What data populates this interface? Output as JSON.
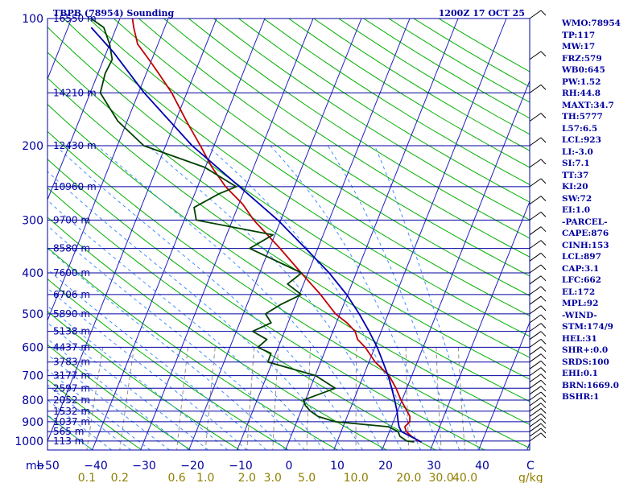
{
  "header": {
    "station": "TBPB (78954) Sounding",
    "time": "1200Z 17 OCT 25"
  },
  "axis": {
    "pressure_unit": "mb",
    "temperature_unit": "C",
    "mixing_ratio_unit": "g/kg"
  },
  "chart_data": {
    "type": "skew-t",
    "pressure_levels": [
      100,
      200,
      300,
      400,
      500,
      600,
      700,
      800,
      900,
      1000
    ],
    "temperature_ticks": [
      -50,
      -40,
      -30,
      -20,
      -10,
      0,
      10,
      20,
      30,
      40
    ],
    "mixing_ratio_labels": [
      "0.1",
      "0.2",
      "0.6",
      "1.0",
      "2.0",
      "3.0",
      "5.0",
      "10.0",
      "20.0",
      "30.0",
      "40.0"
    ],
    "mixing_ratio_values": [
      0.1,
      0.2,
      0.6,
      1.0,
      2.0,
      3.0,
      5.0,
      10.0,
      20.0,
      30.0,
      40.0
    ],
    "heights": [
      {
        "p": 100,
        "label": "16550 m"
      },
      {
        "p": 150,
        "label": "14210 m"
      },
      {
        "p": 200,
        "label": "12430 m"
      },
      {
        "p": 250,
        "label": "10960 m"
      },
      {
        "p": 300,
        "label": "9700 m"
      },
      {
        "p": 350,
        "label": "8580 m"
      },
      {
        "p": 400,
        "label": "7600 m"
      },
      {
        "p": 450,
        "label": "6706 m"
      },
      {
        "p": 500,
        "label": "5890 m"
      },
      {
        "p": 550,
        "label": "5138 m"
      },
      {
        "p": 600,
        "label": "4437 m"
      },
      {
        "p": 650,
        "label": "3783 m"
      },
      {
        "p": 700,
        "label": "3177 m"
      },
      {
        "p": 750,
        "label": "2597 m"
      },
      {
        "p": 800,
        "label": "2052 m"
      },
      {
        "p": 850,
        "label": "1532 m"
      },
      {
        "p": 900,
        "label": "1037 m"
      },
      {
        "p": 950,
        "label": "565 m"
      },
      {
        "p": 1000,
        "label": "113 m"
      }
    ],
    "temperature": [
      [
        1005,
        27.5
      ],
      [
        1000,
        26.8
      ],
      [
        975,
        25.0
      ],
      [
        950,
        23.5
      ],
      [
        925,
        22.8
      ],
      [
        900,
        23.4
      ],
      [
        875,
        23.0
      ],
      [
        850,
        22.0
      ],
      [
        800,
        19.8
      ],
      [
        750,
        17.8
      ],
      [
        700,
        15.3
      ],
      [
        650,
        11.3
      ],
      [
        600,
        8.0
      ],
      [
        575,
        5.8
      ],
      [
        550,
        4.6
      ],
      [
        525,
        2.2
      ],
      [
        500,
        -0.9
      ],
      [
        450,
        -5.6
      ],
      [
        400,
        -11.4
      ],
      [
        350,
        -17.8
      ],
      [
        300,
        -25.6
      ],
      [
        275,
        -29.2
      ],
      [
        250,
        -34.2
      ],
      [
        225,
        -38.6
      ],
      [
        200,
        -42.8
      ],
      [
        175,
        -47.7
      ],
      [
        150,
        -53.1
      ],
      [
        135,
        -57.4
      ],
      [
        125,
        -60.6
      ],
      [
        115,
        -64.2
      ],
      [
        105,
        -66.4
      ],
      [
        100,
        -67.4
      ]
    ],
    "dewpoint": [
      [
        1005,
        26.0
      ],
      [
        1000,
        24.4
      ],
      [
        975,
        22.6
      ],
      [
        950,
        21.8
      ],
      [
        925,
        19.4
      ],
      [
        900,
        8.0
      ],
      [
        875,
        4.0
      ],
      [
        850,
        2.0
      ],
      [
        825,
        0.5
      ],
      [
        800,
        -0.4
      ],
      [
        750,
        5.2
      ],
      [
        700,
        0.1
      ],
      [
        650,
        -10.9
      ],
      [
        620,
        -11.0
      ],
      [
        600,
        -14.2
      ],
      [
        575,
        -13.0
      ],
      [
        550,
        -16.6
      ],
      [
        525,
        -13.5
      ],
      [
        500,
        -15.4
      ],
      [
        475,
        -13.0
      ],
      [
        450,
        -9.6
      ],
      [
        425,
        -13.3
      ],
      [
        400,
        -11.3
      ],
      [
        350,
        -24.1
      ],
      [
        325,
        -20.4
      ],
      [
        300,
        -37.5
      ],
      [
        280,
        -39.0
      ],
      [
        260,
        -35.0
      ],
      [
        250,
        -32.0
      ],
      [
        225,
        -40.1
      ],
      [
        200,
        -54.5
      ],
      [
        175,
        -61.9
      ],
      [
        150,
        -67.9
      ],
      [
        135,
        -68.5
      ],
      [
        125,
        -68.2
      ],
      [
        115,
        -70.0
      ],
      [
        105,
        -72.6
      ],
      [
        100,
        -76.0
      ]
    ],
    "parcel": [
      [
        1005,
        27.5
      ],
      [
        950,
        22.5
      ],
      [
        925,
        21.6
      ],
      [
        900,
        21.0
      ],
      [
        850,
        19.9
      ],
      [
        800,
        18.5
      ],
      [
        750,
        16.9
      ],
      [
        700,
        15.1
      ],
      [
        650,
        12.9
      ],
      [
        600,
        10.5
      ],
      [
        550,
        7.5
      ],
      [
        500,
        4.0
      ],
      [
        450,
        -0.2
      ],
      [
        400,
        -5.6
      ],
      [
        350,
        -12.5
      ],
      [
        300,
        -20.6
      ],
      [
        250,
        -31.3
      ],
      [
        200,
        -44.5
      ],
      [
        150,
        -58.8
      ],
      [
        120,
        -68.6
      ],
      [
        105,
        -75.2
      ]
    ]
  },
  "indices": {
    "items": [
      "WMO:78954",
      "TP:117",
      "MW:17",
      "FRZ:579",
      "WB0:645",
      "PW:1.52",
      "RH:44.8",
      "MAXT:34.7",
      "TH:5777",
      "L57:6.5",
      "LCL:923",
      "LI:-3.0",
      "SI:7.1",
      "TT:37",
      "KI:20",
      "SW:72",
      "EI:1.0",
      "-PARCEL-",
      "CAPE:876",
      "CINH:153",
      "LCL:897",
      "CAP:3.1",
      "LFC:662",
      "EL:172",
      "MPL:92",
      "-WIND-",
      "STM:174/9",
      "HEL:31",
      "SHR+:0.0",
      "SRDS:100",
      "EHI:0.1",
      "BRN:1669.0",
      "BSHR:1"
    ]
  },
  "colors": {
    "isobar": "#0000a0",
    "isotherm": "#2020c0",
    "dry_adiabat": "#00b000",
    "moist_adiabat": "#4090ff",
    "mixing_ratio": "#909090",
    "temperature": "#c00000",
    "dewpoint": "#004000",
    "parcel": "#0000b0",
    "wind": "#000000"
  }
}
